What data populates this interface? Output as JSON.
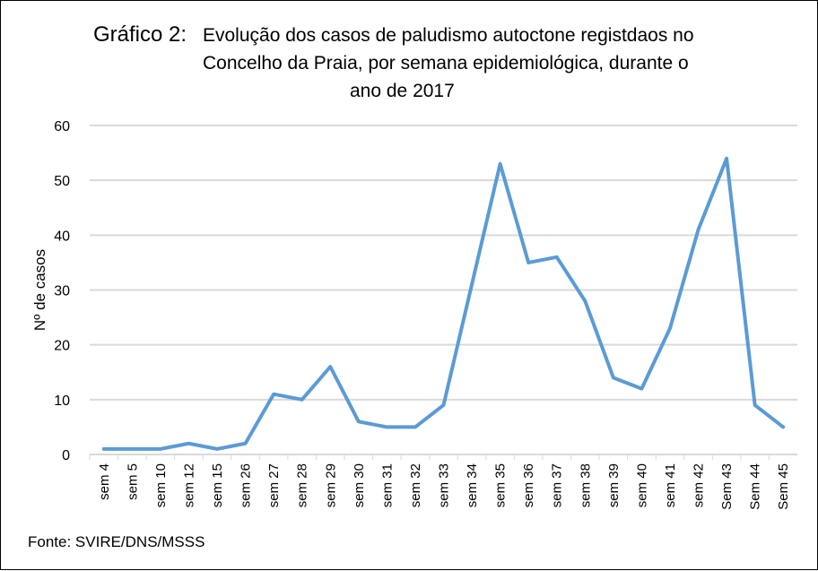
{
  "chart_data": {
    "type": "line",
    "title_prefix": "Gráfico 2:",
    "title_lines": [
      "Evolução dos casos de paludismo autoctone registdaos no",
      "Concelho da Praia, por semana epidemiológica, durante o",
      "ano de 2017"
    ],
    "xlabel": "",
    "ylabel": "Nº de casos",
    "ylim": [
      0,
      60
    ],
    "yticks": [
      "0",
      "10",
      "20",
      "30",
      "40",
      "50",
      "60"
    ],
    "grid": true,
    "categories": [
      "sem 4",
      "sem 5",
      "sem 10",
      "sem 12",
      "sem 15",
      "sem 26",
      "sem 27",
      "sem 28",
      "sem 29",
      "sem 30",
      "sem 31",
      "sem 32",
      "sem 33",
      "sem 34",
      "sem 35",
      "sem 36",
      "sem 37",
      "sem 38",
      "sem 39",
      "sem 40",
      "sem 41",
      "sem 42",
      "Sem 43",
      "Sem 44",
      "Sem 45"
    ],
    "series": [
      {
        "name": "casos",
        "color": "#5B9BD5",
        "values": [
          1,
          1,
          1,
          2,
          1,
          2,
          11,
          10,
          16,
          6,
          5,
          5,
          9,
          31,
          53,
          35,
          36,
          28,
          14,
          12,
          23,
          41,
          54,
          9,
          5
        ]
      }
    ],
    "source": "Fonte: SVIRE/DNS/MSSS"
  }
}
